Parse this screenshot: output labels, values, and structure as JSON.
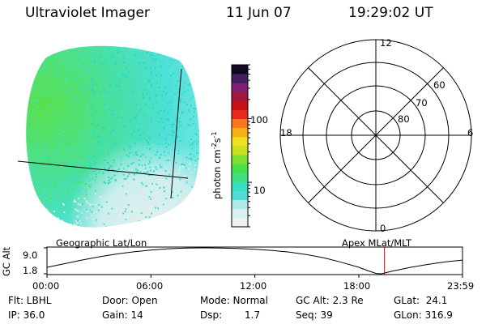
{
  "header": {
    "instrument": "Ultraviolet Imager",
    "date": "11 Jun 07",
    "time": "19:29:02 UT"
  },
  "colorbar": {
    "label": "photon cm",
    "label_exp1": "-2",
    "label_mid": "s",
    "label_exp2": "-1",
    "ticks": [
      {
        "label": "10",
        "value": 10
      },
      {
        "label": "100",
        "value": 100
      }
    ],
    "colors": [
      "#f0f0f0",
      "#d8f0f0",
      "#b0e8e8",
      "#50dcd8",
      "#38e0c0",
      "#40e080",
      "#48e048",
      "#80e030",
      "#c8e020",
      "#f0e020",
      "#f8b018",
      "#f87818",
      "#e82818",
      "#c81018",
      "#a01838",
      "#802070",
      "#402060",
      "#100820"
    ]
  },
  "earth_image": {
    "colors": {
      "dayside": "#4de35a",
      "mid": "#43e0c9",
      "low": "#d7ecec",
      "speckle": "#2bd7c0"
    }
  },
  "polar_plot": {
    "coordinate_system": "Apex MLat/MLT",
    "lat_rings": [
      {
        "label": "80"
      },
      {
        "label": "70"
      },
      {
        "label": "60"
      }
    ],
    "mlt_labels": {
      "top": "12",
      "bottom": "0",
      "left": "18",
      "right": "6"
    }
  },
  "geo_label": "Geographic Lat/Lon",
  "chart_data": {
    "type": "line",
    "title": "",
    "xlabel": "",
    "ylabel": "GC Alt",
    "x_tick_labels": [
      "00:00",
      "06:00",
      "12:00",
      "18:00",
      "23:59"
    ],
    "x_ticks_hours": [
      0,
      6,
      12,
      18,
      23.983
    ],
    "xlim": [
      0,
      23.983
    ],
    "y_tick_labels": [
      "9.0",
      "1.8"
    ],
    "ylim": [
      1.8,
      9.0
    ],
    "series": [
      {
        "x": [
          0,
          1,
          2,
          3,
          4,
          5,
          6,
          7,
          8,
          9,
          10,
          11,
          12,
          13,
          14,
          15,
          16,
          17,
          18,
          18.5,
          19,
          19.3,
          20,
          21,
          22,
          23,
          23.983
        ],
        "y": [
          3.6,
          4.6,
          5.6,
          6.5,
          7.3,
          7.9,
          8.4,
          8.75,
          8.95,
          9.0,
          8.95,
          8.85,
          8.6,
          8.25,
          7.8,
          7.1,
          6.2,
          5.0,
          3.6,
          2.7,
          1.9,
          1.8,
          2.6,
          3.6,
          4.4,
          5.1,
          5.6
        ]
      }
    ],
    "current_time_hours": 19.48,
    "current_time_color": "#d00000"
  },
  "footer": {
    "flt": "Flt: LBHL",
    "ip": "IP: 36.0",
    "door": "Door: Open",
    "gain": "Gain: 14",
    "mode": "Mode: Normal",
    "dsp_label": "Dsp:",
    "dsp_value": "1.7",
    "gc_alt": "GC Alt: 2.3 Re",
    "seq": "Seq: 39",
    "glat": "GLat:  24.1",
    "glon": "GLon: 316.9"
  }
}
